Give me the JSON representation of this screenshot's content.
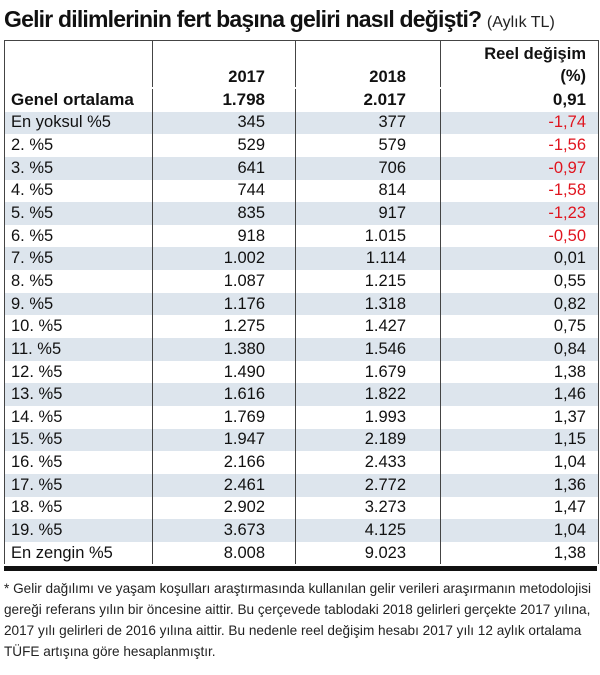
{
  "title": "Gelir dilimlerinin fert başına geliri nasıl değişti?",
  "unit": "(Aylık TL)",
  "columns": [
    "",
    "2017",
    "2018",
    "Reel değişim (%)"
  ],
  "average": {
    "label": "Genel ortalama",
    "y2017": "1.798",
    "y2018": "2.017",
    "change": "0,91"
  },
  "rows": [
    {
      "label": "En yoksul %5",
      "y2017": "345",
      "y2018": "377",
      "change": "-1,74"
    },
    {
      "label": "2. %5",
      "y2017": "529",
      "y2018": "579",
      "change": "-1,56"
    },
    {
      "label": "3. %5",
      "y2017": "641",
      "y2018": "706",
      "change": "-0,97"
    },
    {
      "label": "4. %5",
      "y2017": "744",
      "y2018": "814",
      "change": "-1,58"
    },
    {
      "label": "5. %5",
      "y2017": "835",
      "y2018": "917",
      "change": "-1,23"
    },
    {
      "label": "6. %5",
      "y2017": "918",
      "y2018": "1.015",
      "change": "-0,50"
    },
    {
      "label": "7. %5",
      "y2017": "1.002",
      "y2018": "1.114",
      "change": "0,01"
    },
    {
      "label": "8. %5",
      "y2017": "1.087",
      "y2018": "1.215",
      "change": "0,55"
    },
    {
      "label": "9. %5",
      "y2017": "1.176",
      "y2018": "1.318",
      "change": "0,82"
    },
    {
      "label": "10. %5",
      "y2017": "1.275",
      "y2018": "1.427",
      "change": "0,75"
    },
    {
      "label": "11. %5",
      "y2017": "1.380",
      "y2018": "1.546",
      "change": "0,84"
    },
    {
      "label": "12. %5",
      "y2017": "1.490",
      "y2018": "1.679",
      "change": "1,38"
    },
    {
      "label": "13. %5",
      "y2017": "1.616",
      "y2018": "1.822",
      "change": "1,46"
    },
    {
      "label": "14. %5",
      "y2017": "1.769",
      "y2018": "1.993",
      "change": "1,37"
    },
    {
      "label": "15. %5",
      "y2017": "1.947",
      "y2018": "2.189",
      "change": "1,15"
    },
    {
      "label": "16. %5",
      "y2017": "2.166",
      "y2018": "2.433",
      "change": "1,04"
    },
    {
      "label": "17. %5",
      "y2017": "2.461",
      "y2018": "2.772",
      "change": "1,36"
    },
    {
      "label": "18. %5",
      "y2017": "2.902",
      "y2018": "3.273",
      "change": "1,47"
    },
    {
      "label": "19. %5",
      "y2017": "3.673",
      "y2018": "4.125",
      "change": "1,04"
    },
    {
      "label": "En  zengin %5",
      "y2017": "8.008",
      "y2018": "9.023",
      "change": "1,38"
    }
  ],
  "colors": {
    "negative": "#e0141e",
    "row_shade": "#dde5ed"
  },
  "footnote": "* Gelir dağılımı ve yaşam koşulları araştırmasında kullanılan gelir verileri araşırmanın metodolojisi gereği referans yılın bir öncesine aittir. Bu çerçevede tablodaki 2018 gelirleri gerçekte 2017 yılına, 2017 yılı gelirleri de 2016 yılına aittir. Bu nedenle reel değişim hesabı 2017 yılı 12 aylık ortalama TÜFE artışına göre hesaplanmıştır."
}
